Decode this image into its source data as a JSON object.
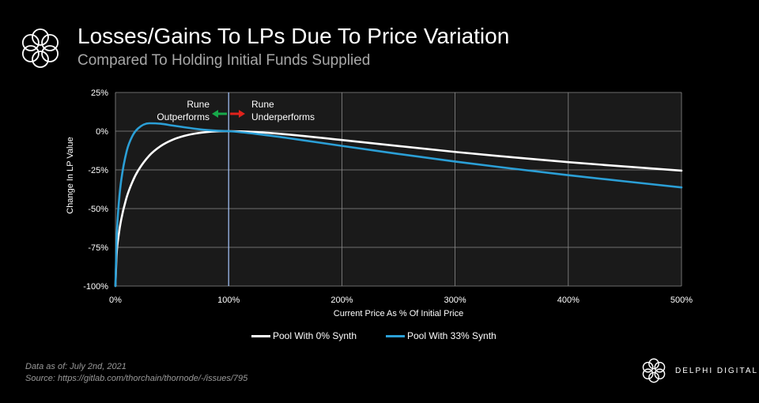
{
  "header": {
    "title": "Losses/Gains To LPs Due To Price Variation",
    "subtitle": "Compared To Holding Initial Funds Supplied"
  },
  "footer": {
    "data_as_of": "Data as of: July 2nd, 2021",
    "source": "Source:  https://gitlab.com/thorchain/thornode/-/issues/795"
  },
  "brand": {
    "name": "DELPHI DIGITAL"
  },
  "colors": {
    "background": "#000000",
    "plot_background": "#1a1a1a",
    "series_0": "#ffffff",
    "series_33": "#2b9fd6",
    "arrow_left": "#17a84a",
    "arrow_right": "#e0231c",
    "reference_line": "#a8c8ff"
  },
  "chart_data": {
    "type": "line",
    "title": "Losses/Gains To LPs Due To Price Variation",
    "subtitle": "Compared To Holding Initial Funds Supplied",
    "xlabel": "Current Price As % Of Initial Price",
    "ylabel": "Change In LP Value",
    "xlim": [
      0,
      500
    ],
    "ylim": [
      -100,
      25
    ],
    "x_ticks": [
      0,
      100,
      200,
      300,
      400,
      500
    ],
    "x_tick_labels": [
      "0%",
      "100%",
      "200%",
      "300%",
      "400%",
      "500%"
    ],
    "y_ticks": [
      25,
      0,
      -25,
      -50,
      -75,
      -100
    ],
    "y_tick_labels": [
      "25%",
      "0%",
      "-25%",
      "-50%",
      "-75%",
      "-100%"
    ],
    "grid": true,
    "legend_position": "bottom-center",
    "reference_line_x": 100,
    "annotations": {
      "left_line1": "Rune",
      "left_line2": "Outperforms",
      "right_line1": "Rune",
      "right_line2": "Underperforms"
    },
    "series": [
      {
        "name": "Pool With 0% Synth",
        "color": "#ffffff",
        "x": [
          0,
          1,
          3,
          5,
          10,
          15,
          20,
          30,
          40,
          50,
          60,
          70,
          80,
          90,
          100,
          125,
          150,
          200,
          250,
          300,
          350,
          400,
          450,
          500
        ],
        "y": [
          -100,
          -80.2,
          -66.4,
          -57.4,
          -42.5,
          -32.7,
          -25.5,
          -15.7,
          -9.6,
          -5.7,
          -3.2,
          -1.6,
          -0.6,
          -0.1,
          0,
          -0.6,
          -2.0,
          -5.7,
          -9.6,
          -13.4,
          -16.8,
          -20.0,
          -22.8,
          -25.5
        ]
      },
      {
        "name": "Pool With 33% Synth",
        "color": "#2b9fd6",
        "x": [
          0,
          1,
          2,
          3,
          5,
          10,
          15,
          20,
          30,
          40,
          50,
          60,
          70,
          80,
          90,
          100,
          125,
          150,
          200,
          250,
          300,
          350,
          400,
          450,
          500
        ],
        "y": [
          -100,
          -70.6,
          -56.2,
          -46.2,
          -32.3,
          -12.7,
          -3.1,
          1.8,
          5.1,
          4.8,
          3.7,
          2.6,
          1.6,
          0.8,
          0.3,
          0,
          -1.8,
          -4.2,
          -9.5,
          -14.7,
          -19.6,
          -24.1,
          -28.4,
          -32.4,
          -36.3
        ]
      }
    ]
  }
}
